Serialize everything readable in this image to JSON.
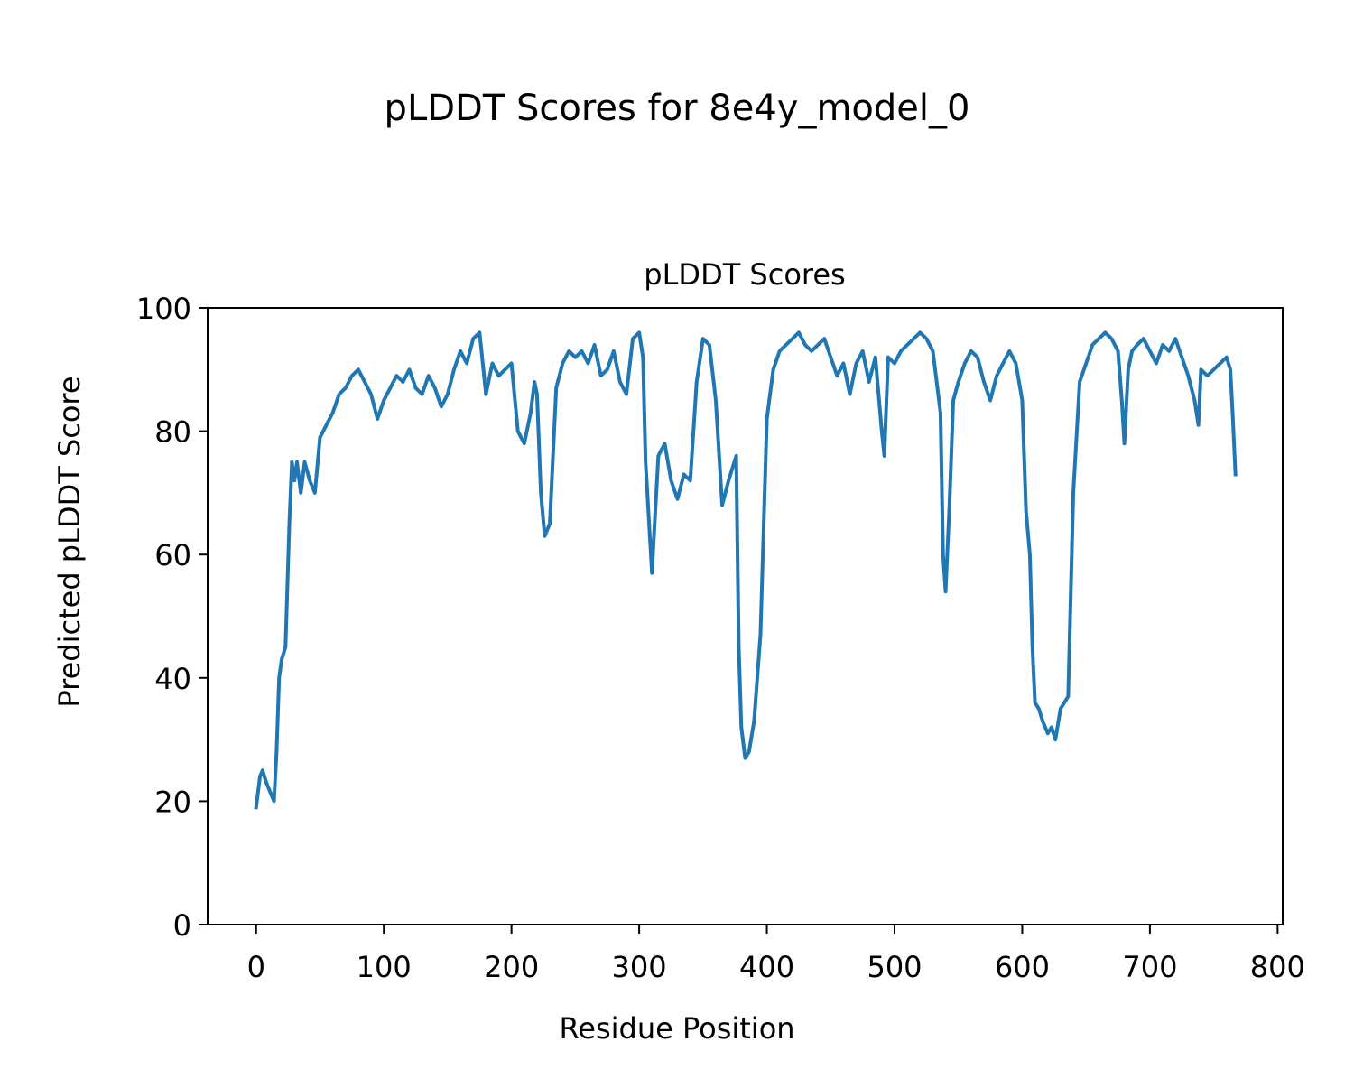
{
  "figure": {
    "suptitle": "pLDDT Scores for 8e4y_model_0"
  },
  "colors": {
    "series": "#1f77b4",
    "axes": "#000000",
    "background": "#ffffff"
  },
  "chart_data": {
    "type": "line",
    "title": "pLDDT Scores",
    "xlabel": "Residue Position",
    "ylabel": "Predicted pLDDT Score",
    "xlim": [
      -38,
      804
    ],
    "ylim": [
      0,
      100
    ],
    "xticks": [
      0,
      100,
      200,
      300,
      400,
      500,
      600,
      700,
      800
    ],
    "yticks": [
      0,
      20,
      40,
      60,
      80,
      100
    ],
    "grid": false,
    "legend": "none",
    "series": [
      {
        "x": [
          0,
          3,
          5,
          8,
          10,
          14,
          16,
          18,
          20,
          23,
          26,
          28,
          30,
          32,
          35,
          38,
          42,
          46,
          50,
          55,
          60,
          65,
          70,
          75,
          80,
          85,
          90,
          95,
          100,
          105,
          110,
          115,
          120,
          125,
          130,
          135,
          140,
          145,
          150,
          155,
          160,
          165,
          170,
          175,
          180,
          185,
          190,
          195,
          200,
          205,
          210,
          215,
          218,
          220,
          223,
          226,
          230,
          235,
          240,
          245,
          250,
          255,
          260,
          265,
          270,
          275,
          280,
          285,
          290,
          295,
          300,
          303,
          305,
          310,
          315,
          320,
          325,
          330,
          335,
          340,
          345,
          350,
          355,
          360,
          365,
          370,
          373,
          376,
          378,
          380,
          383,
          386,
          390,
          395,
          400,
          405,
          410,
          415,
          420,
          425,
          430,
          435,
          440,
          445,
          450,
          455,
          460,
          465,
          470,
          475,
          480,
          485,
          490,
          492,
          495,
          500,
          505,
          510,
          515,
          520,
          525,
          530,
          533,
          536,
          538,
          540,
          543,
          546,
          550,
          555,
          560,
          565,
          570,
          575,
          580,
          585,
          590,
          595,
          600,
          603,
          606,
          608,
          610,
          613,
          616,
          620,
          623,
          626,
          630,
          633,
          636,
          640,
          645,
          650,
          655,
          660,
          665,
          670,
          675,
          678,
          680,
          683,
          686,
          690,
          695,
          700,
          705,
          710,
          715,
          720,
          725,
          730,
          735,
          738,
          740,
          745,
          750,
          755,
          760,
          763,
          765,
          767
        ],
        "y": [
          19,
          24,
          25,
          23,
          22,
          20,
          28,
          40,
          43,
          45,
          65,
          75,
          72,
          75,
          70,
          75,
          72,
          70,
          79,
          81,
          83,
          86,
          87,
          89,
          90,
          88,
          86,
          82,
          85,
          87,
          89,
          88,
          90,
          87,
          86,
          89,
          87,
          84,
          86,
          90,
          93,
          91,
          95,
          96,
          86,
          91,
          89,
          90,
          91,
          80,
          78,
          83,
          88,
          86,
          70,
          63,
          65,
          87,
          91,
          93,
          92,
          93,
          91,
          94,
          89,
          90,
          93,
          88,
          86,
          95,
          96,
          92,
          75,
          57,
          76,
          78,
          72,
          69,
          73,
          72,
          88,
          95,
          94,
          85,
          68,
          72,
          74,
          76,
          45,
          32,
          27,
          28,
          33,
          47,
          82,
          90,
          93,
          94,
          95,
          96,
          94,
          93,
          94,
          95,
          92,
          89,
          91,
          86,
          91,
          93,
          88,
          92,
          80,
          76,
          92,
          91,
          93,
          94,
          95,
          96,
          95,
          93,
          88,
          83,
          60,
          54,
          68,
          85,
          88,
          91,
          93,
          92,
          88,
          85,
          89,
          91,
          93,
          91,
          85,
          67,
          60,
          45,
          36,
          35,
          33,
          31,
          32,
          30,
          35,
          36,
          37,
          70,
          88,
          91,
          94,
          95,
          96,
          95,
          93,
          85,
          78,
          90,
          93,
          94,
          95,
          93,
          91,
          94,
          93,
          95,
          92,
          89,
          85,
          81,
          90,
          89,
          90,
          91,
          92,
          90,
          82,
          73
        ]
      }
    ]
  }
}
